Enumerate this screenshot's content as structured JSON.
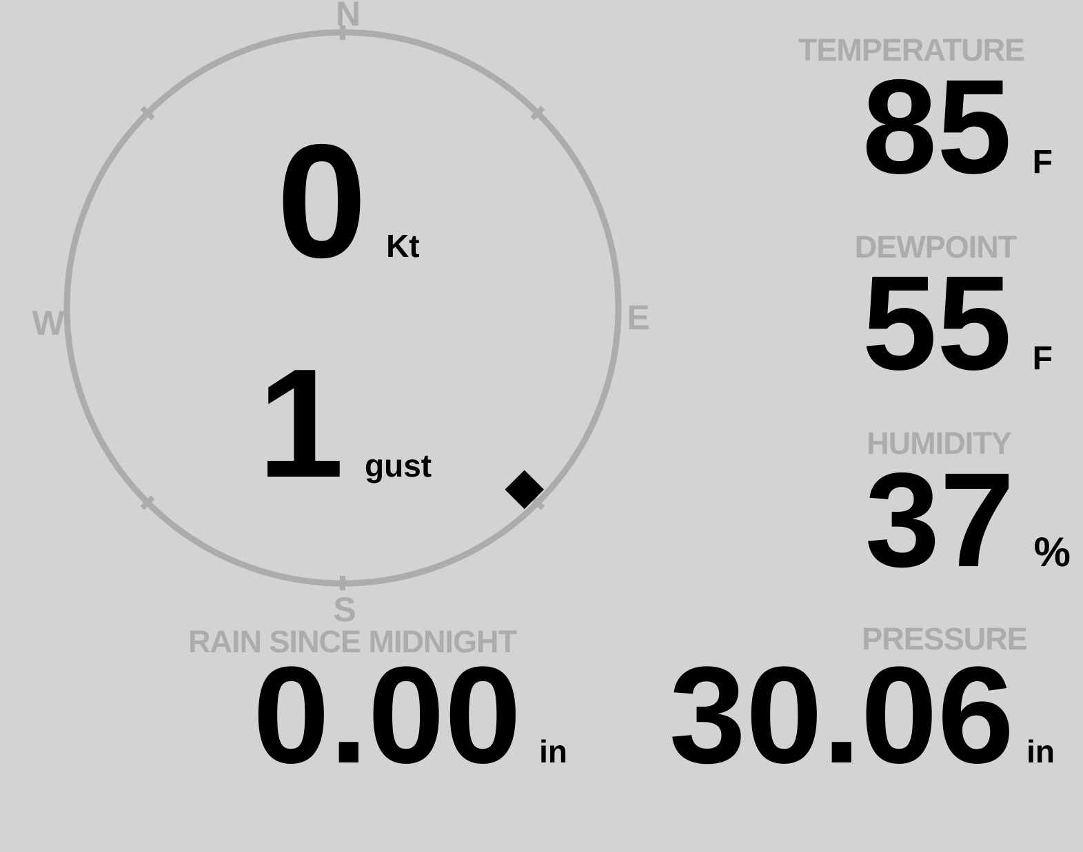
{
  "theme": {
    "background": "#d3d3d3",
    "muted_gray": "#acacac",
    "value_black": "#000000"
  },
  "compass": {
    "cardinals": {
      "n": "N",
      "e": "E",
      "s": "S",
      "w": "W"
    },
    "wind": {
      "speed": "0",
      "speed_unit": "Kt",
      "gust": "1",
      "gust_unit": "gust",
      "direction": "SE",
      "direction_deg": 135
    }
  },
  "metrics": {
    "temperature": {
      "label": "TEMPERATURE",
      "value": "85",
      "unit": "F"
    },
    "dewpoint": {
      "label": "DEWPOINT",
      "value": "55",
      "unit": "F"
    },
    "humidity": {
      "label": "HUMIDITY",
      "value": "37",
      "unit": "%"
    },
    "rain": {
      "label": "RAIN SINCE MIDNIGHT",
      "value": "0.00",
      "unit": "in"
    },
    "pressure": {
      "label": "PRESSURE",
      "value": "30.06",
      "unit": "in"
    }
  }
}
